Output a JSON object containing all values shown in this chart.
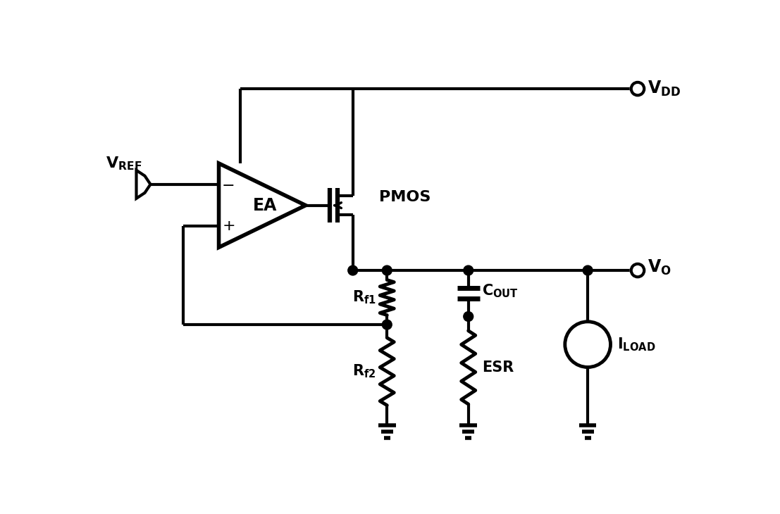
{
  "background_color": "#ffffff",
  "line_color": "#000000",
  "line_width": 3.0,
  "fig_width": 11.07,
  "fig_height": 7.3,
  "labels": {
    "VREF": "V$_\\mathregular{REF}$",
    "VDD": "V$_\\mathregular{DD}$",
    "VO": "V$_\\mathregular{O}$",
    "PMOS": "PMOS",
    "EA": "EA",
    "Rf1": "R$_\\mathregular{f1}$",
    "Rf2": "R$_\\mathregular{f2}$",
    "COUT": "C$_\\mathregular{OUT}$",
    "ESR": "ESR",
    "ILOAD": "I$_\\mathregular{LOAD}$"
  }
}
